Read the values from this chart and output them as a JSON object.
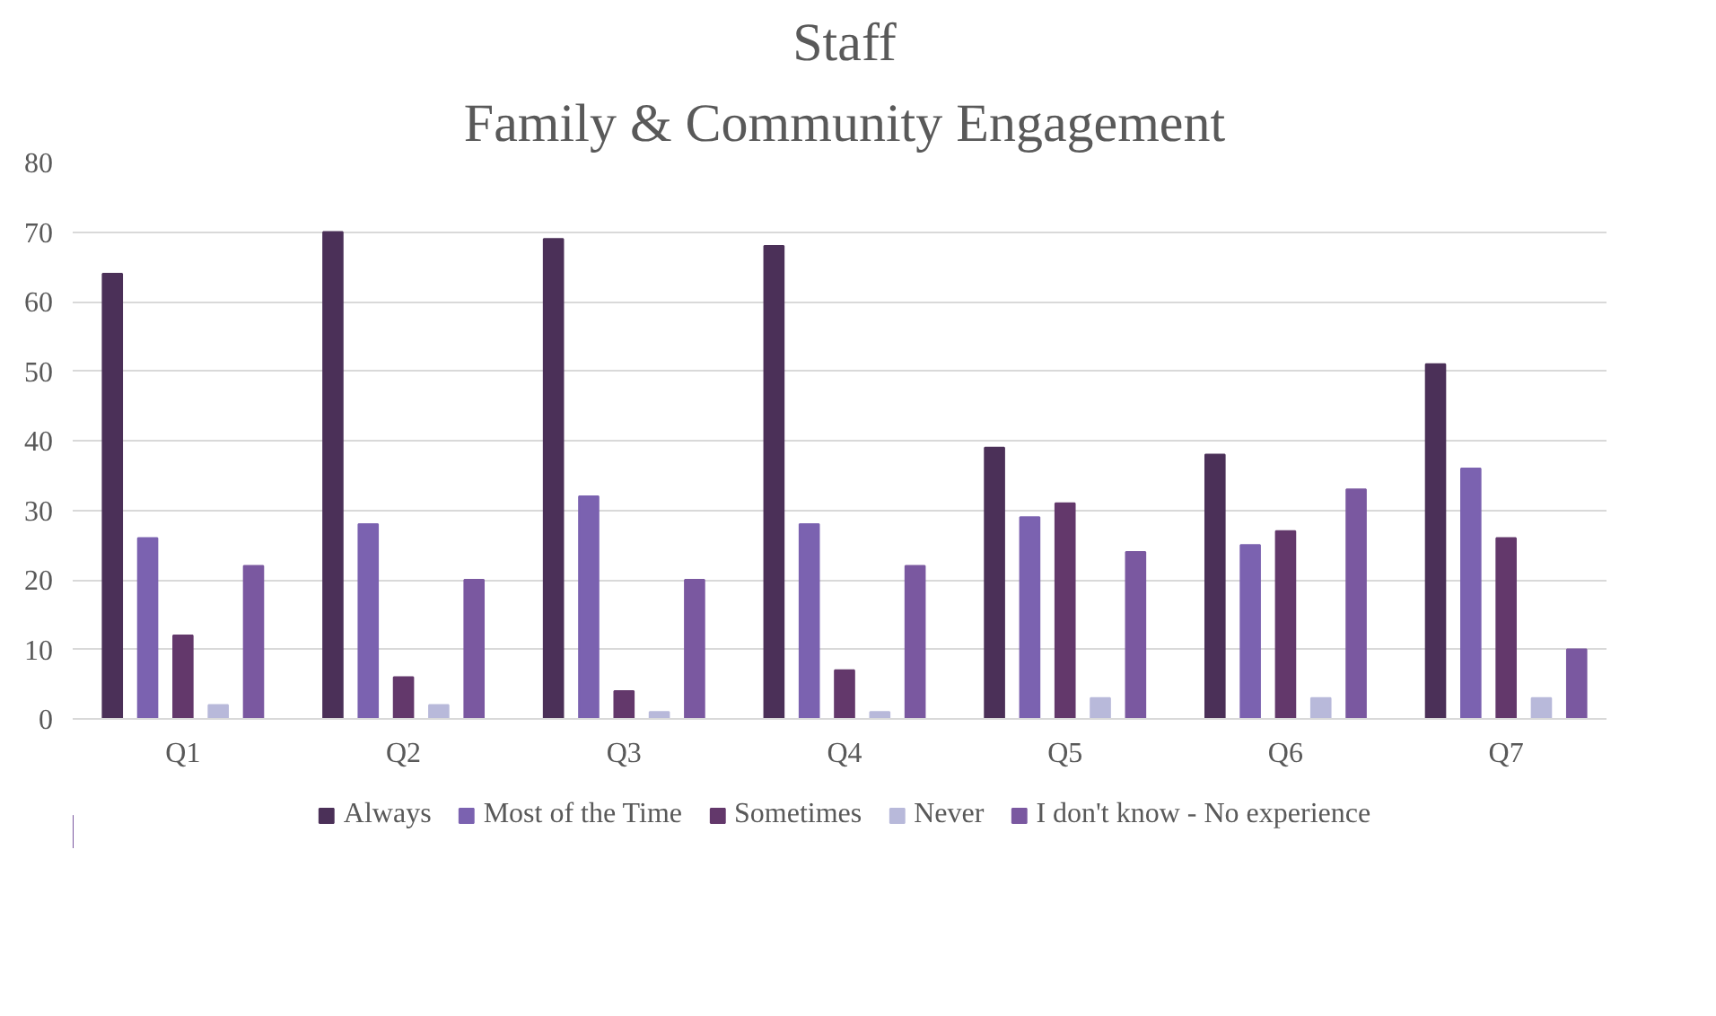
{
  "chart_data": {
    "type": "bar",
    "title": "Staff",
    "subtitle": "Family & Community Engagement",
    "categories": [
      "Q1",
      "Q2",
      "Q3",
      "Q4",
      "Q5",
      "Q6",
      "Q7"
    ],
    "series": [
      {
        "name": "Always",
        "color": "#4b3058",
        "values": [
          64,
          70,
          69,
          68,
          39,
          38,
          51
        ]
      },
      {
        "name": "Most of the Time",
        "color": "#7b62b0",
        "values": [
          26,
          28,
          32,
          28,
          29,
          25,
          36
        ]
      },
      {
        "name": "Sometimes",
        "color": "#63386b",
        "values": [
          12,
          6,
          4,
          7,
          31,
          27,
          26
        ]
      },
      {
        "name": "Never",
        "color": "#b8b9da",
        "values": [
          2,
          2,
          1,
          1,
          3,
          3,
          3
        ]
      },
      {
        "name": "I don't know - No experience",
        "color": "#7a58a0",
        "values": [
          22,
          20,
          20,
          22,
          24,
          33,
          10
        ]
      }
    ],
    "ylim": [
      0,
      80
    ],
    "yticks": [
      0,
      10,
      20,
      30,
      40,
      50,
      60,
      70,
      80
    ],
    "grid": "y",
    "legend": "bottom"
  }
}
